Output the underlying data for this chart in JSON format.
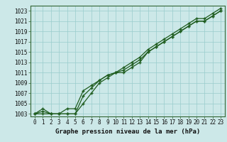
{
  "title": "Graphe pression niveau de la mer (hPa)",
  "bg_color": "#cce8e8",
  "grid_color": "#99cccc",
  "line_color": "#1e5c1e",
  "xlabel": "Graphe pression niveau de la mer (hPa)",
  "xlim_min": -0.5,
  "xlim_max": 23.5,
  "ylim_min": 1002.5,
  "ylim_max": 1024.0,
  "yticks": [
    1003,
    1005,
    1007,
    1009,
    1011,
    1013,
    1015,
    1017,
    1019,
    1021,
    1023
  ],
  "xticks": [
    0,
    1,
    2,
    3,
    4,
    5,
    6,
    7,
    8,
    9,
    10,
    11,
    12,
    13,
    14,
    15,
    16,
    17,
    18,
    19,
    20,
    21,
    22,
    23
  ],
  "series": [
    [
      1003,
      1003.5,
      1003,
      1003,
      1003,
      1003,
      1005,
      1007,
      1009,
      1010,
      1011,
      1011,
      1012,
      1013,
      1015,
      1016,
      1017,
      1018,
      1019,
      1020,
      1021,
      1021,
      1022,
      1023
    ],
    [
      1003,
      1003,
      1003,
      1003,
      1003,
      1003,
      1006.5,
      1008,
      1009.5,
      1010.5,
      1011,
      1011.5,
      1012.5,
      1013.5,
      1015,
      1016,
      1017,
      1018,
      1019,
      1020,
      1021,
      1021,
      1022,
      1023
    ],
    [
      1003,
      1004,
      1003,
      1003,
      1004,
      1004,
      1007.5,
      1008.5,
      1009.5,
      1010.5,
      1011,
      1012,
      1013,
      1014,
      1015.5,
      1016.5,
      1017.5,
      1018.5,
      1019.5,
      1020.5,
      1021.5,
      1021.5,
      1022.5,
      1023.5
    ]
  ],
  "tick_fontsize": 5.5,
  "xlabel_fontsize": 6.5
}
